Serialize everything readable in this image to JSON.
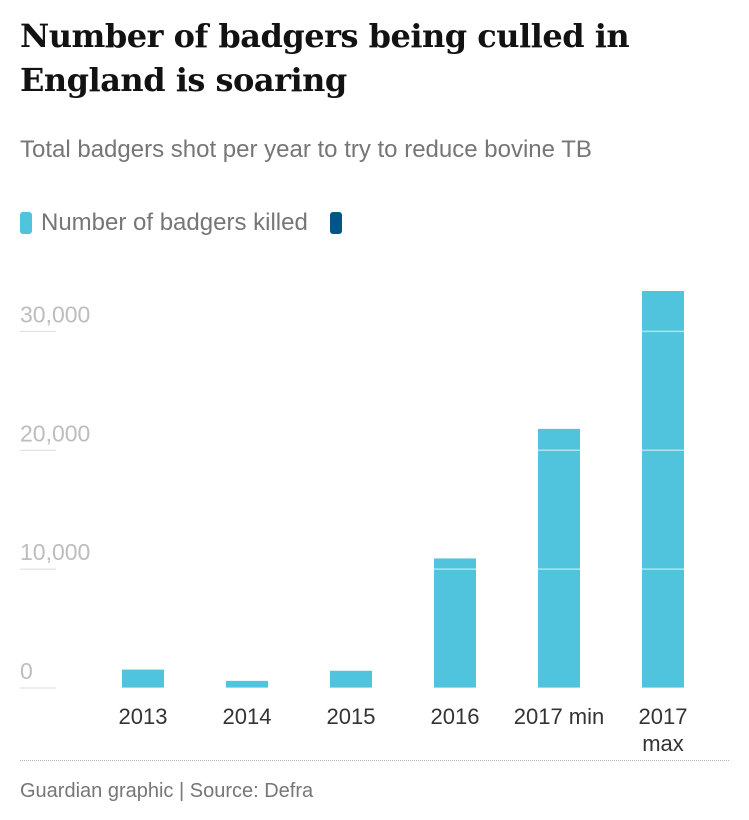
{
  "header": {
    "title": "Number of badgers being culled in England is soaring",
    "subtitle": "Total badgers shot per year to try to reduce bovine TB"
  },
  "legend": [
    {
      "label": "Number of badgers killed",
      "color": "#4fc4dc"
    },
    {
      "label": "",
      "color": "#005689"
    }
  ],
  "footer": {
    "source": "Guardian graphic | Source: Defra"
  },
  "chart_data": {
    "type": "bar",
    "title": "Number of badgers being culled in England is soaring",
    "subtitle": "Total badgers shot per year to try to reduce bovine TB",
    "categories": [
      [
        "2013"
      ],
      [
        "2014"
      ],
      [
        "2015"
      ],
      [
        "2016"
      ],
      [
        "2017 min"
      ],
      [
        "2017",
        "max"
      ]
    ],
    "series": [
      {
        "name": "Number of badgers killed",
        "color": "#4fc4dc",
        "values": [
          1550,
          600,
          1450,
          10900,
          21800,
          33400
        ]
      }
    ],
    "ylim": [
      0,
      33400
    ],
    "yticks": [
      0,
      10000,
      20000,
      30000
    ],
    "ytick_labels": [
      "0",
      "10,000",
      "20,000",
      "30,000"
    ],
    "grid": true,
    "legend_position": "top-left",
    "xlabel": "",
    "ylabel": ""
  }
}
